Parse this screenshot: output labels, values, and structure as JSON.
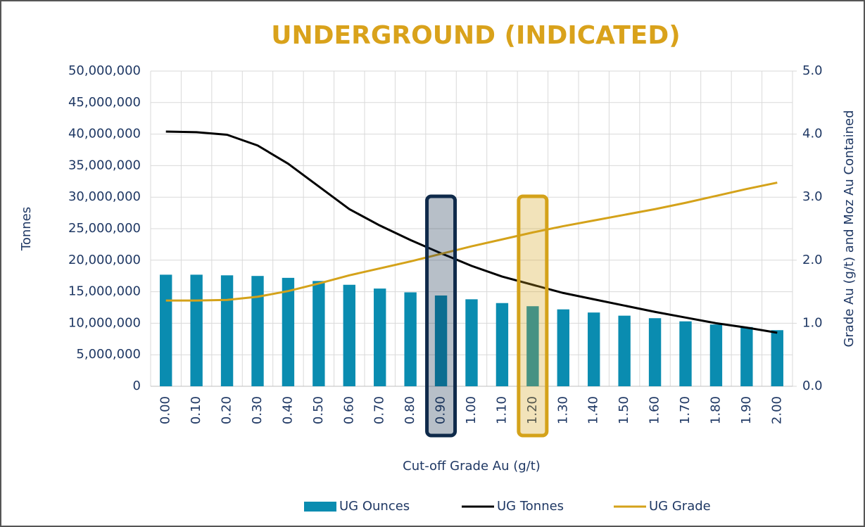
{
  "chart_data": {
    "type": "combo",
    "title": "UNDERGROUND (INDICATED)",
    "x_label": "Cut-off Grade Au (g/t)",
    "y_label": "Tonnes",
    "y2_label": "Grade Au (g/t) and Moz Au Contained",
    "categories": [
      "0.00",
      "0.10",
      "0.20",
      "0.30",
      "0.40",
      "0.50",
      "0.60",
      "0.70",
      "0.80",
      "0.90",
      "1.00",
      "1.10",
      "1.20",
      "1.30",
      "1.40",
      "1.50",
      "1.60",
      "1.70",
      "1.80",
      "1.90",
      "2.00"
    ],
    "series": [
      {
        "name": "UG Ounces",
        "kind": "bar",
        "axis": "y2",
        "color": "#0a8cb0",
        "values": [
          1.77,
          1.77,
          1.76,
          1.75,
          1.72,
          1.67,
          1.61,
          1.55,
          1.49,
          1.44,
          1.38,
          1.32,
          1.27,
          1.22,
          1.17,
          1.12,
          1.08,
          1.03,
          0.98,
          0.94,
          0.89
        ]
      },
      {
        "name": "UG Tonnes",
        "kind": "line",
        "axis": "y",
        "color": "#000000",
        "values": [
          40400000,
          40300000,
          39900000,
          38200000,
          35300000,
          31700000,
          28100000,
          25500000,
          23200000,
          21100000,
          19100000,
          17400000,
          16100000,
          14800000,
          13800000,
          12800000,
          11800000,
          10900000,
          10000000,
          9300000,
          8500000
        ]
      },
      {
        "name": "UG Grade",
        "kind": "line",
        "axis": "y2",
        "color": "#d4a21a",
        "values": [
          1.36,
          1.36,
          1.37,
          1.42,
          1.51,
          1.63,
          1.76,
          1.87,
          1.98,
          2.1,
          2.22,
          2.33,
          2.44,
          2.54,
          2.63,
          2.72,
          2.81,
          2.91,
          3.02,
          3.13,
          3.23
        ]
      }
    ],
    "ylim": [
      0,
      50000000
    ],
    "yticks": [
      0,
      {
        "value": 5000000,
        "label": "5,000,000"
      },
      {
        "value": 10000000,
        "label": "10,000,000"
      },
      {
        "value": 15000000,
        "label": "15,000,000"
      },
      {
        "value": 20000000,
        "label": "20,000,000"
      },
      {
        "value": 25000000,
        "label": "25,000,000"
      },
      {
        "value": 30000000,
        "label": "30,000,000"
      },
      {
        "value": 35000000,
        "label": "35,000,000"
      },
      {
        "value": 40000000,
        "label": "40,000,000"
      },
      {
        "value": 45000000,
        "label": "45,000,000"
      },
      {
        "value": 50000000,
        "label": "50,000,000"
      }
    ],
    "y2lim": [
      0,
      5
    ],
    "y2ticks": [
      {
        "value": 0,
        "label": "0.0"
      },
      {
        "value": 1,
        "label": "1.0"
      },
      {
        "value": 2,
        "label": "2.0"
      },
      {
        "value": 3,
        "label": "3.0"
      },
      {
        "value": 4,
        "label": "4.0"
      },
      {
        "value": 5,
        "label": "5.0"
      }
    ],
    "grid": true,
    "legend": "bottom",
    "highlights": [
      {
        "index": 9,
        "color": "#0f2a4a"
      },
      {
        "index": 12,
        "color": "#d4a21a"
      }
    ]
  }
}
